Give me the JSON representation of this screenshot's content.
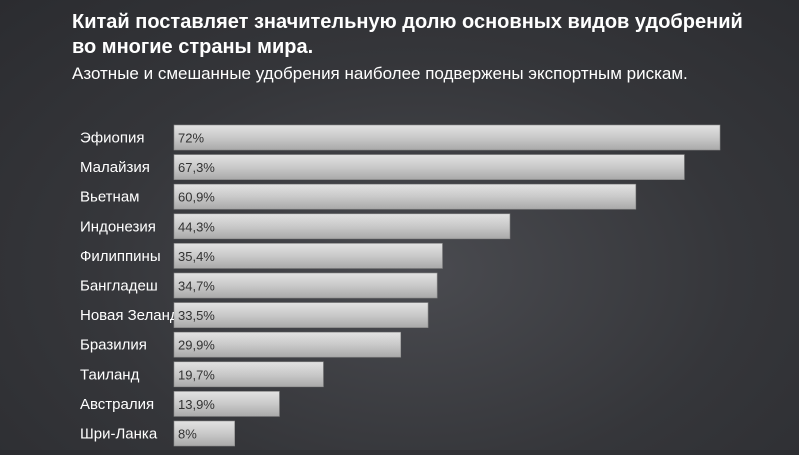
{
  "title": "Китай поставляет значительную долю основных видов удобрений во многие страны мира.",
  "subtitle": "Азотные и смешанные удобрения наиболее подвержены экспортным рискам.",
  "chart_data": {
    "type": "bar",
    "orientation": "horizontal",
    "categories": [
      "Эфиопия",
      "Малайзия",
      "Вьетнам",
      "Индонезия",
      "Филиппины",
      "Бангладеш",
      "Новая Зеландия",
      "Бразилия",
      "Таиланд",
      "Австралия",
      "Шри-Ланка"
    ],
    "values": [
      72,
      67.3,
      60.9,
      44.3,
      35.4,
      34.7,
      33.5,
      29.9,
      19.7,
      13.9,
      8
    ],
    "value_labels": [
      "72%",
      "67,3%",
      "60,9%",
      "44,3%",
      "35,4%",
      "34,7%",
      "33,5%",
      "29,9%",
      "19,7%",
      "13,9%",
      "8%"
    ],
    "title": "Китай поставляет значительную долю основных видов удобрений во многие страны мира.",
    "subtitle": "Азотные и смешанные удобрения наиболее подвержены экспортным рискам.",
    "xlim": [
      0,
      72
    ],
    "grid": false,
    "bar_color": "#c8c8c8",
    "label_color": "#ffffff",
    "value_label_color": "#333333"
  }
}
